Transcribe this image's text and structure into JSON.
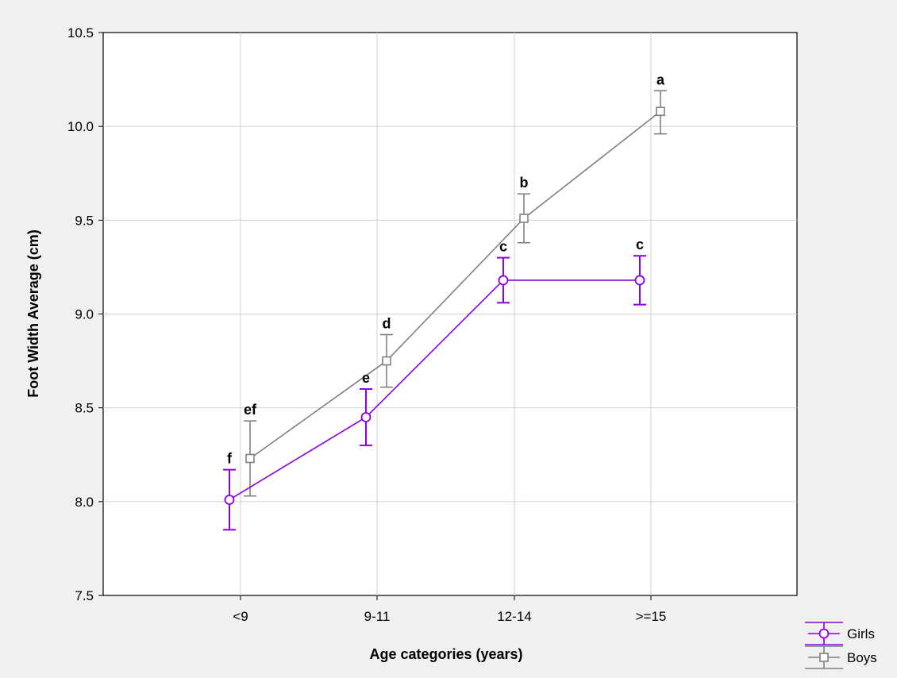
{
  "chart_data": {
    "type": "line",
    "title": "",
    "xlabel": "Age categories (years)",
    "ylabel": "Foot Width Average (cm)",
    "categories": [
      "<9",
      "9-11",
      "12-14",
      ">=15"
    ],
    "ylim": [
      7.5,
      10.5
    ],
    "yticks": [
      "7.5",
      "8.0",
      "8.5",
      "9.0",
      "9.5",
      "10.0",
      "10.5"
    ],
    "grid": true,
    "legend_position": "bottom-right",
    "series": [
      {
        "name": "Girls",
        "color": "#8c00e6",
        "marker": "circle",
        "values": [
          8.01,
          8.45,
          9.18,
          9.18
        ],
        "error_low": [
          7.85,
          8.3,
          9.06,
          9.05
        ],
        "error_high": [
          8.17,
          8.6,
          9.3,
          9.31
        ],
        "labels": [
          "f",
          "e",
          "c",
          "c"
        ]
      },
      {
        "name": "Boys",
        "color": "#808080",
        "marker": "square",
        "values": [
          8.23,
          8.75,
          9.51,
          10.08
        ],
        "error_low": [
          8.03,
          8.61,
          9.38,
          9.96
        ],
        "error_high": [
          8.43,
          8.89,
          9.64,
          10.19
        ],
        "labels": [
          "ef",
          "d",
          "b",
          "a"
        ]
      }
    ]
  }
}
